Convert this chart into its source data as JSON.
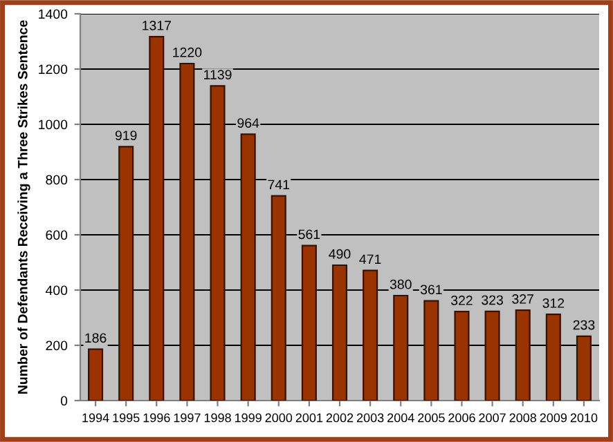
{
  "chart_data": {
    "type": "bar",
    "ylabel": "Number of Defendants Receiving a Three Strikes Sentence",
    "categories": [
      "1994",
      "1995",
      "1996",
      "1997",
      "1998",
      "1999",
      "2000",
      "2001",
      "2002",
      "2003",
      "2004",
      "2005",
      "2006",
      "2007",
      "2008",
      "2009",
      "2010"
    ],
    "values": [
      186,
      919,
      1317,
      1220,
      1139,
      964,
      741,
      561,
      490,
      471,
      380,
      361,
      322,
      323,
      327,
      312,
      233
    ],
    "color": "#993300",
    "ylim": [
      0,
      1400
    ],
    "yticks": [
      0,
      200,
      400,
      600,
      800,
      1000,
      1200,
      1400
    ],
    "grid": "y",
    "data_labels": true
  }
}
